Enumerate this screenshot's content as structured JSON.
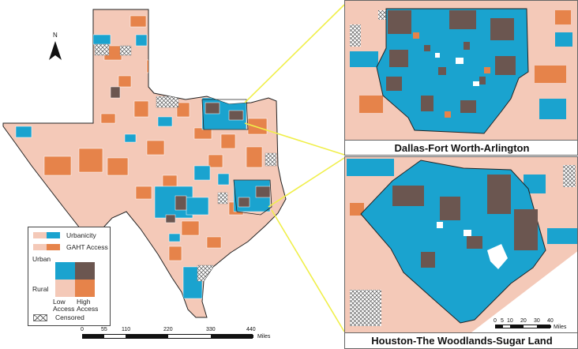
{
  "north_label": "N",
  "legend": {
    "urbanicity_label": "Urbanicity",
    "access_label": "GAHT Access",
    "urban_label": "Urban",
    "rural_label": "Rural",
    "low_access_label": "Low Access",
    "high_access_label": "High Access",
    "censored_label": "Censored"
  },
  "main_scale": {
    "ticks": [
      "0",
      "55",
      "110",
      "220",
      "330",
      "440"
    ],
    "unit": "Miles"
  },
  "insets": {
    "dallas_title": "Dallas-Fort Worth-Arlington",
    "houston_title": "Houston-The Woodlands-Sugar Land"
  },
  "houston_scale": {
    "ticks": [
      "0",
      "5",
      "10",
      "20",
      "30",
      "40"
    ],
    "unit": "Miles"
  },
  "colors": {
    "rural_low": "#f4c9b8",
    "rural_high": "#e6834a",
    "urban_low": "#1aa3cf",
    "urban_high": "#6b5650",
    "censored": "hatched",
    "callout_line": "#f0ef4a",
    "water": "#ffffff"
  }
}
